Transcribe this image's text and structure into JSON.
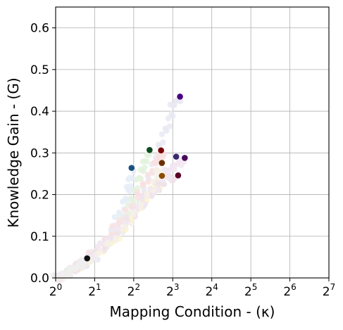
{
  "chart_data": {
    "type": "scatter",
    "title": "",
    "xlabel": "Mapping Condition - (κ)",
    "ylabel": "Knowledge Gain - (G)",
    "xscale": "log2",
    "xlim": [
      1,
      128
    ],
    "ylim": [
      0,
      0.65
    ],
    "grid": true,
    "x_ticks": [
      {
        "base": "2",
        "exp": "0",
        "value": 1
      },
      {
        "base": "2",
        "exp": "1",
        "value": 2
      },
      {
        "base": "2",
        "exp": "2",
        "value": 4
      },
      {
        "base": "2",
        "exp": "3",
        "value": 8
      },
      {
        "base": "2",
        "exp": "4",
        "value": 16
      },
      {
        "base": "2",
        "exp": "5",
        "value": 32
      },
      {
        "base": "2",
        "exp": "6",
        "value": 64
      },
      {
        "base": "2",
        "exp": "7",
        "value": 128
      }
    ],
    "y_ticks": [
      "0.0",
      "0.1",
      "0.2",
      "0.3",
      "0.4",
      "0.5",
      "0.6"
    ],
    "series": [
      {
        "color": "#e9e9f3",
        "trail": [
          [
            1.05,
            0.0
          ],
          [
            1.3,
            0.01
          ],
          [
            1.7,
            0.03
          ],
          [
            2.2,
            0.06
          ],
          [
            3.0,
            0.1
          ],
          [
            4.0,
            0.16
          ],
          [
            5.0,
            0.22
          ],
          [
            6.0,
            0.29
          ],
          [
            7.0,
            0.35
          ],
          [
            8.0,
            0.41
          ],
          [
            9.0,
            0.43
          ]
        ],
        "points": [
          {
            "x": 9.1,
            "y": 0.435,
            "color": "#4b0082"
          }
        ]
      },
      {
        "color": "#fdf6cc",
        "trail": [
          [
            1.05,
            0.0
          ],
          [
            1.4,
            0.02
          ],
          [
            2.0,
            0.05
          ],
          [
            3.0,
            0.1
          ],
          [
            4.0,
            0.15
          ],
          [
            5.0,
            0.19
          ],
          [
            6.0,
            0.22
          ],
          [
            6.5,
            0.24
          ]
        ],
        "points": [
          {
            "x": 6.6,
            "y": 0.245,
            "color": "#8b4a00"
          }
        ]
      },
      {
        "color": "#e4f2de",
        "trail": [
          [
            1.05,
            0.0
          ],
          [
            1.5,
            0.03
          ],
          [
            2.2,
            0.07
          ],
          [
            3.0,
            0.12
          ],
          [
            3.8,
            0.18
          ],
          [
            4.3,
            0.23
          ],
          [
            4.8,
            0.27
          ],
          [
            5.2,
            0.3
          ]
        ],
        "points": [
          {
            "x": 5.3,
            "y": 0.307,
            "color": "#0b4a1e"
          }
        ]
      },
      {
        "color": "#e6edf7",
        "trail": [
          [
            1.05,
            0.0
          ],
          [
            1.4,
            0.02
          ],
          [
            2.0,
            0.06
          ],
          [
            2.7,
            0.11
          ],
          [
            3.3,
            0.17
          ],
          [
            3.7,
            0.22
          ],
          [
            3.9,
            0.26
          ]
        ],
        "points": [
          {
            "x": 3.85,
            "y": 0.264,
            "color": "#1a5080"
          }
        ]
      },
      {
        "color": "#f9e1e1",
        "trail": [
          [
            1.05,
            0.0
          ],
          [
            1.5,
            0.03
          ],
          [
            2.3,
            0.08
          ],
          [
            3.2,
            0.14
          ],
          [
            4.3,
            0.2
          ],
          [
            5.5,
            0.25
          ],
          [
            6.3,
            0.29
          ],
          [
            6.6,
            0.3
          ]
        ],
        "points": [
          {
            "x": 6.5,
            "y": 0.306,
            "color": "#7a0000"
          }
        ]
      },
      {
        "color": "#f0e4ee",
        "trail": [
          [
            1.05,
            0.0
          ],
          [
            1.5,
            0.03
          ],
          [
            2.5,
            0.09
          ],
          [
            3.8,
            0.15
          ],
          [
            5.5,
            0.22
          ],
          [
            7.0,
            0.25
          ],
          [
            8.3,
            0.27
          ]
        ],
        "points": [
          {
            "x": 8.5,
            "y": 0.291,
            "color": "#3a2a6e"
          }
        ]
      },
      {
        "color": "#efe3ea",
        "trail": [
          [
            1.05,
            0.0
          ],
          [
            1.5,
            0.03
          ],
          [
            2.5,
            0.08
          ],
          [
            4.0,
            0.15
          ],
          [
            6.0,
            0.21
          ],
          [
            7.5,
            0.24
          ],
          [
            8.5,
            0.24
          ]
        ],
        "points": [
          {
            "x": 8.8,
            "y": 0.246,
            "color": "#5a0028"
          }
        ]
      },
      {
        "color": "#f2e8f2",
        "trail": [
          [
            1.05,
            0.0
          ],
          [
            1.6,
            0.03
          ],
          [
            2.6,
            0.09
          ],
          [
            4.2,
            0.16
          ],
          [
            6.5,
            0.23
          ],
          [
            8.5,
            0.27
          ],
          [
            9.5,
            0.28
          ]
        ],
        "points": [
          {
            "x": 9.9,
            "y": 0.288,
            "color": "#4a0a5a"
          }
        ]
      },
      {
        "color": "#f6f0e6",
        "trail": [
          [
            1.05,
            0.0
          ],
          [
            1.4,
            0.02
          ],
          [
            2.0,
            0.05
          ],
          [
            3.0,
            0.1
          ],
          [
            4.5,
            0.17
          ],
          [
            6.0,
            0.24
          ],
          [
            6.5,
            0.27
          ]
        ],
        "points": [
          {
            "x": 6.6,
            "y": 0.276,
            "color": "#6a3000"
          }
        ]
      },
      {
        "color": "#eeeeee",
        "trail": [
          [
            1.0,
            0.0
          ],
          [
            1.2,
            0.01
          ],
          [
            1.4,
            0.025
          ],
          [
            1.6,
            0.035
          ],
          [
            1.7,
            0.04
          ]
        ],
        "points": [
          {
            "x": 1.75,
            "y": 0.047,
            "color": "#111111"
          }
        ]
      }
    ]
  }
}
